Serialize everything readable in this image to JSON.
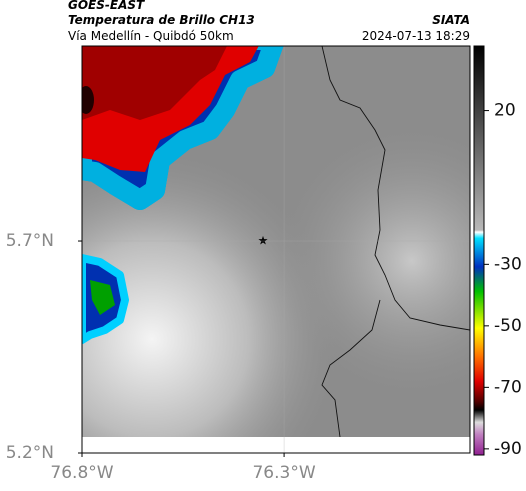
{
  "header": {
    "title": "GOES-EAST",
    "subtitle": "Temperatura de Brillo CH13",
    "region": "Vía Medellín - Quibdó 50km",
    "source": "SIATA",
    "datetime": "2024-07-13 18:29"
  },
  "map": {
    "xlim": [
      -76.8,
      -75.84
    ],
    "ylim": [
      5.2,
      6.16
    ],
    "xticks": [
      {
        "value": -76.8,
        "label": "76.8°W"
      },
      {
        "value": -76.3,
        "label": "76.3°W"
      }
    ],
    "yticks": [
      {
        "value": 5.7,
        "label": "5.7°N"
      },
      {
        "value": 5.2,
        "label": "5.2°N"
      }
    ]
  },
  "colorbar": {
    "lim": [
      -92,
      41
    ],
    "ticks": [
      20,
      -30,
      -50,
      -70,
      -90
    ]
  }
}
